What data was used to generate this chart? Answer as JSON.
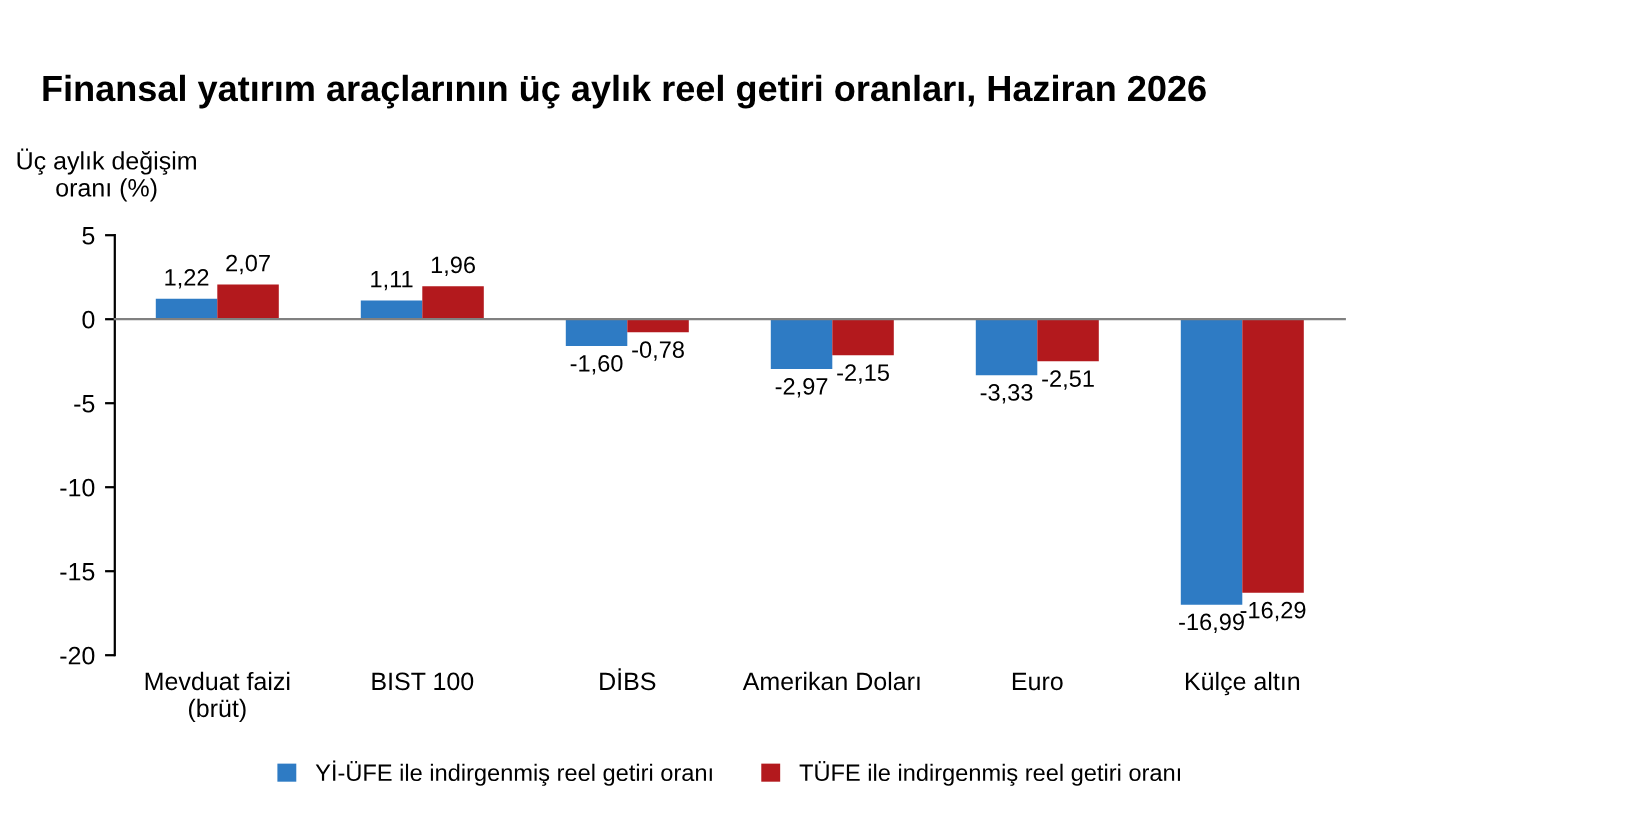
{
  "chart_data": {
    "type": "bar",
    "title": "Finansal yatırım araçlarının üç aylık reel getiri oranları, Haziran 2026",
    "ylabel": "Üç aylık değişim\noranı (%)",
    "categories": [
      "Mevduat faizi\n(brüt)",
      "BIST 100",
      "DİBS",
      "Amerikan Doları",
      "Euro",
      "Külçe altın"
    ],
    "series": [
      {
        "name": "Yİ-ÜFE ile indirgenmiş reel getiri oranı",
        "color": "#2e7bc4",
        "values": [
          1.22,
          1.11,
          -1.6,
          -2.97,
          -3.33,
          -16.99
        ],
        "value_labels": [
          "1,22",
          "1,11",
          "-1,60",
          "-2,97",
          "-3,33",
          "-16,99"
        ]
      },
      {
        "name": "TÜFE ile indirgenmiş reel getiri oranı",
        "color": "#b3191d",
        "values": [
          2.07,
          1.96,
          -0.78,
          -2.15,
          -2.51,
          -16.29
        ],
        "value_labels": [
          "2,07",
          "1,96",
          "-0,78",
          "-2,15",
          "-2,51",
          "-16,29"
        ]
      }
    ],
    "ylim": [
      -20,
      5
    ],
    "yticks": [
      -20,
      -15,
      -10,
      -5,
      0,
      5
    ],
    "legend": "bottom"
  }
}
